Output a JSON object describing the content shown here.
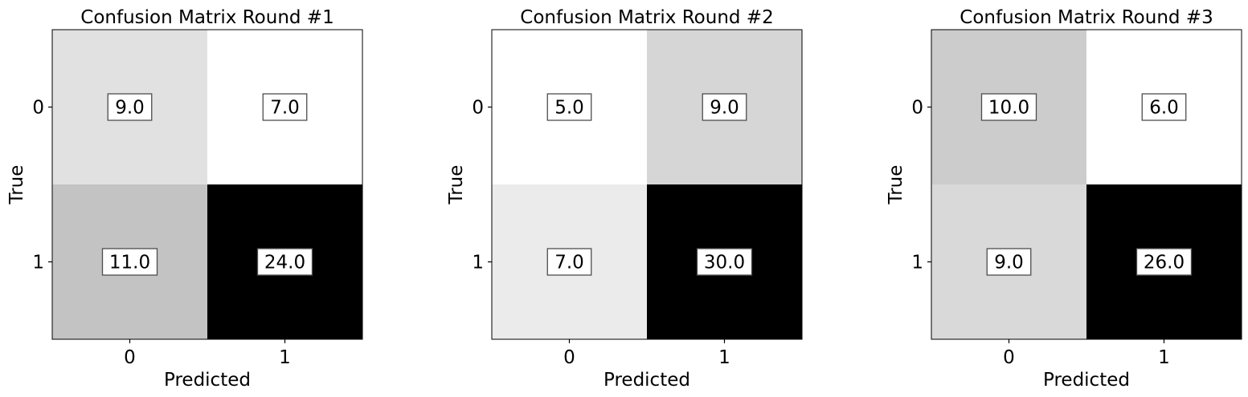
{
  "chart_data": [
    {
      "type": "heatmap",
      "title": "Confusion Matrix Round #1",
      "xlabel": "Predicted",
      "ylabel": "True",
      "x_categories": [
        "0",
        "1"
      ],
      "y_categories": [
        "0",
        "1"
      ],
      "values": [
        [
          9.0,
          7.0
        ],
        [
          11.0,
          24.0
        ]
      ],
      "value_labels": [
        [
          "9.0",
          "7.0"
        ],
        [
          "11.0",
          "24.0"
        ]
      ],
      "colormap": "grayscale: white (low) to black (high)",
      "grid": false,
      "colorbar": false
    },
    {
      "type": "heatmap",
      "title": "Confusion Matrix Round #2",
      "xlabel": "Predicted",
      "ylabel": "True",
      "x_categories": [
        "0",
        "1"
      ],
      "y_categories": [
        "0",
        "1"
      ],
      "values": [
        [
          5.0,
          9.0
        ],
        [
          7.0,
          30.0
        ]
      ],
      "value_labels": [
        [
          "5.0",
          "9.0"
        ],
        [
          "7.0",
          "30.0"
        ]
      ],
      "colormap": "grayscale: white (low) to black (high)",
      "grid": false,
      "colorbar": false
    },
    {
      "type": "heatmap",
      "title": "Confusion Matrix Round #3",
      "xlabel": "Predicted",
      "ylabel": "True",
      "x_categories": [
        "0",
        "1"
      ],
      "y_categories": [
        "0",
        "1"
      ],
      "values": [
        [
          10.0,
          6.0
        ],
        [
          9.0,
          26.0
        ]
      ],
      "value_labels": [
        [
          "10.0",
          "6.0"
        ],
        [
          "9.0",
          "26.0"
        ]
      ],
      "colormap": "grayscale: white (low) to black (high)",
      "grid": false,
      "colorbar": false
    }
  ]
}
